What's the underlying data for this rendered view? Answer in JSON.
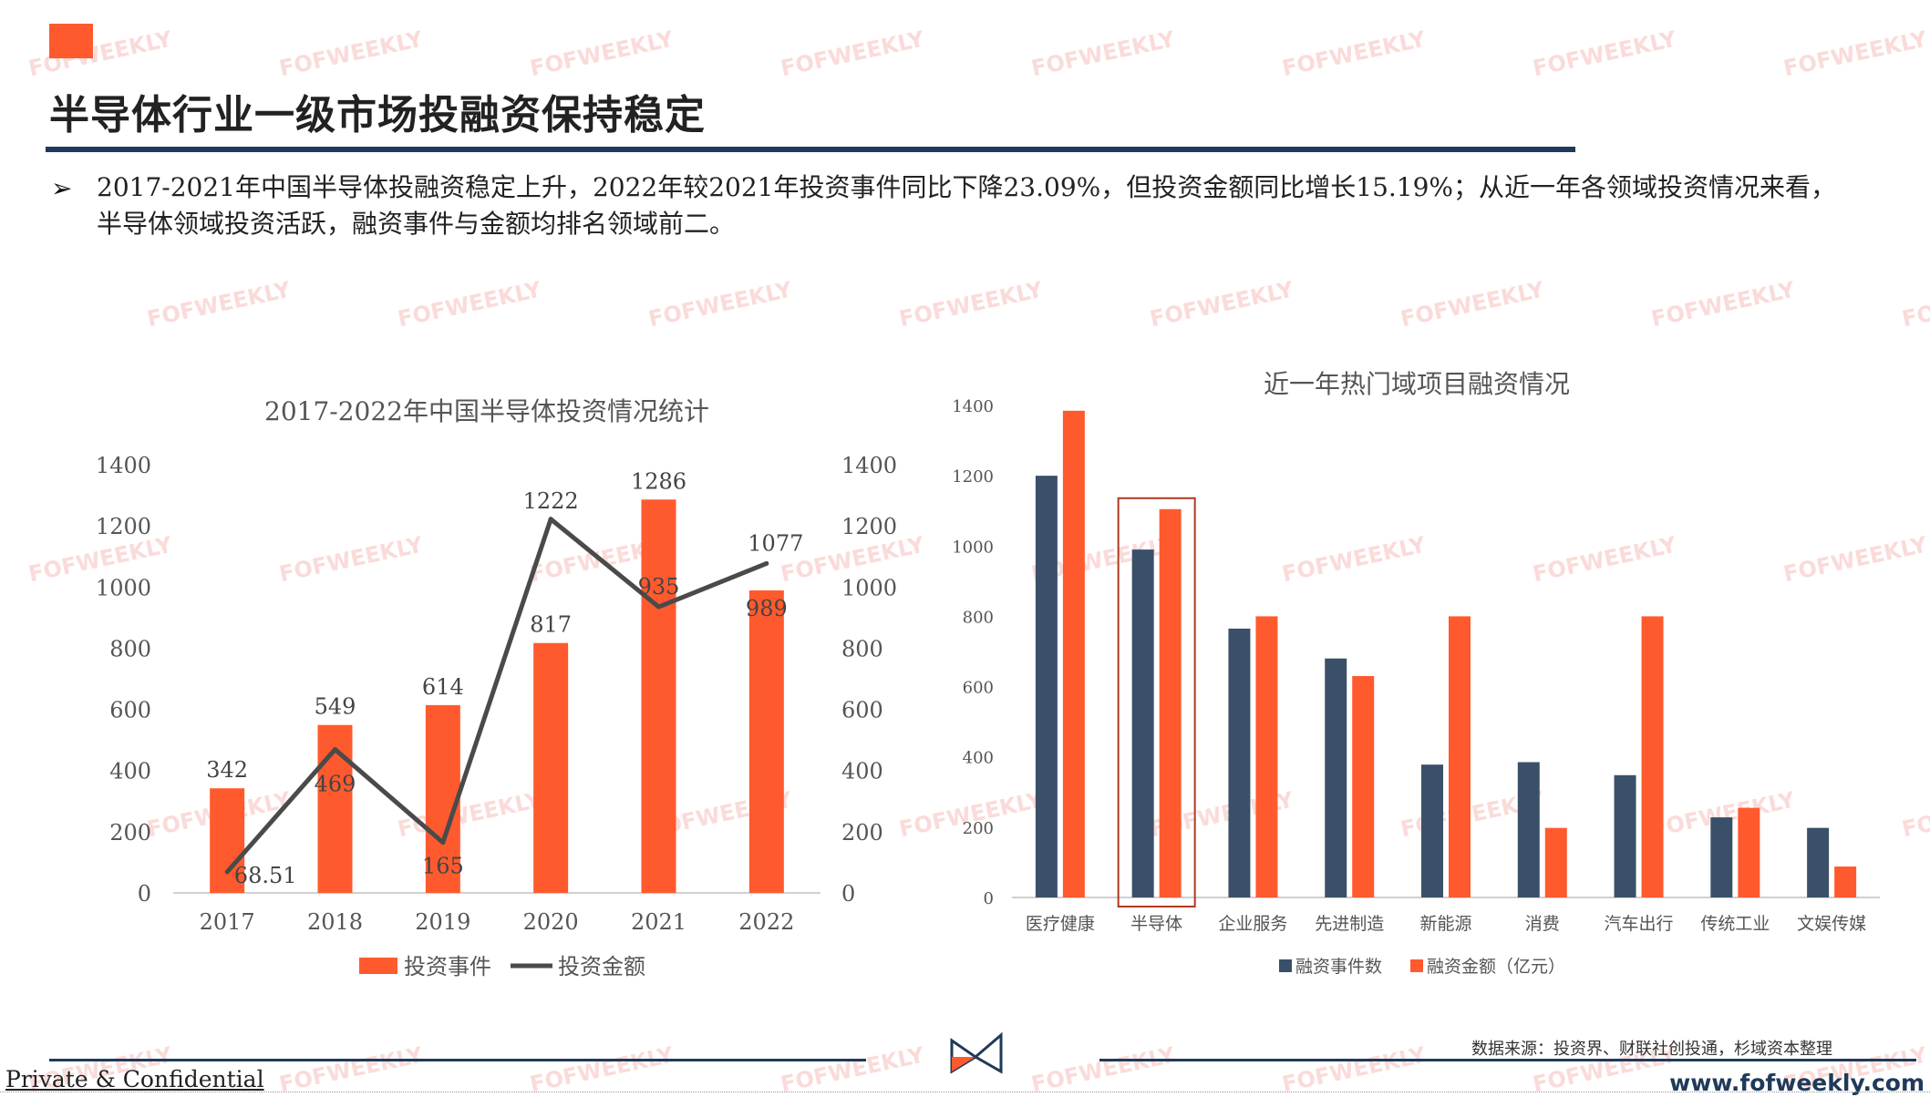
{
  "page": {
    "title": "半导体行业一级市场投融资保持稳定",
    "accent_color": "#ff5a2e",
    "bullet": "2017-2021年中国半导体投融资稳定上升，2022年较2021年投资事件同比下降23.09%，但投资金额同比增长15.19%；从近一年各领域投资情况来看，半导体领域投资活跃，融资事件与金额均排名领域前二。",
    "source": "数据来源：投资界、财联社创投通，杉域资本整理",
    "footer_left": "Private & Confidential",
    "footer_right": "www.fofweekly.com",
    "watermark": "FOFWEEKLY",
    "logo_icon": "bowtie-logo-icon"
  },
  "chart_data": [
    {
      "type": "bar+line",
      "title": "2017-2022年中国半导体投资情况统计",
      "categories": [
        "2017",
        "2018",
        "2019",
        "2020",
        "2021",
        "2022"
      ],
      "y_ticks": [
        "0",
        "200",
        "400",
        "600",
        "800",
        "1000",
        "1200",
        "1400"
      ],
      "ylim": [
        0,
        1400
      ],
      "y2lim": [
        0,
        1400
      ],
      "grid": false,
      "legend_position": "bottom",
      "series": [
        {
          "name": "投资事件",
          "type": "bar",
          "color": "#ff5a2e",
          "values": [
            342,
            549,
            614,
            817,
            1286,
            989
          ],
          "labels": [
            "342",
            "549",
            "614",
            "817",
            "1286",
            "989"
          ]
        },
        {
          "name": "投资金额",
          "type": "line",
          "color": "#4a4a4a",
          "values": [
            68.51,
            469,
            165,
            1222,
            935,
            1077
          ],
          "labels": [
            "68.51",
            "469",
            "165",
            "1222",
            "935",
            "1077"
          ]
        }
      ]
    },
    {
      "type": "bar",
      "title": "近一年热门域项目融资情况",
      "categories": [
        "医疗健康",
        "半导体",
        "企业服务",
        "先进制造",
        "新能源",
        "消费",
        "汽车出行",
        "传统工业",
        "文娱传媒"
      ],
      "y_ticks": [
        "0",
        "200",
        "400",
        "600",
        "800",
        "1000",
        "1200",
        "1400"
      ],
      "ylim": [
        0,
        1400
      ],
      "grid": false,
      "legend_position": "bottom",
      "highlight_category": "半导体",
      "series": [
        {
          "name": "融资事件数",
          "color": "#3a5068",
          "values": [
            1200,
            990,
            765,
            680,
            378,
            385,
            348,
            228,
            198
          ]
        },
        {
          "name": "融资金额（亿元）",
          "color": "#ff5a2e",
          "values": [
            1385,
            1105,
            800,
            630,
            800,
            198,
            800,
            255,
            88
          ]
        }
      ]
    }
  ]
}
